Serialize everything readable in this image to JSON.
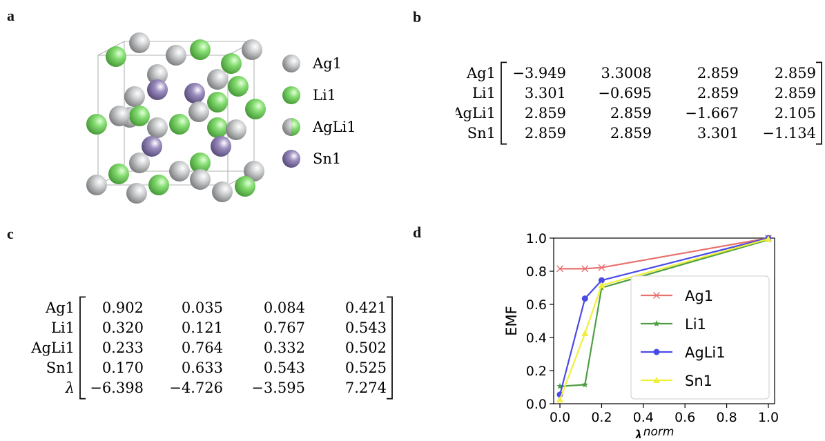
{
  "panels": {
    "a": "a",
    "b": "b",
    "c": "c",
    "d": "d"
  },
  "legend_a": [
    {
      "label": "Ag1",
      "color": "#a9abad"
    },
    {
      "label": "Li1",
      "color": "#78d067"
    },
    {
      "label": "AgLi1",
      "color": "#a9abad",
      "color2": "#78d067"
    },
    {
      "label": "Sn1",
      "color": "#8778a8"
    }
  ],
  "matrix_b": {
    "rows": [
      "Ag1",
      "Li1",
      "AgLi1",
      "Sn1"
    ],
    "values": [
      [
        "−3.949",
        "3.3008",
        "2.859",
        "2.859"
      ],
      [
        "3.301",
        "−0.695",
        "2.859",
        "2.859"
      ],
      [
        "2.859",
        "2.859",
        "−1.667",
        "2.105"
      ],
      [
        "2.859",
        "2.859",
        "3.301",
        "−1.134"
      ]
    ]
  },
  "matrix_c": {
    "rows": [
      "Ag1",
      "Li1",
      "AgLi1",
      "Sn1",
      "λ"
    ],
    "values": [
      [
        "0.902",
        "0.035",
        "0.084",
        "0.421"
      ],
      [
        "0.320",
        "0.121",
        "0.767",
        "0.543"
      ],
      [
        "0.233",
        "0.764",
        "0.332",
        "0.502"
      ],
      [
        "0.170",
        "0.633",
        "0.543",
        "0.525"
      ],
      [
        "−6.398",
        "−4.726",
        "−3.595",
        "7.274"
      ]
    ]
  },
  "chart_data": {
    "type": "line",
    "xlabel": "λ",
    "xlabel_sup": "norm",
    "ylabel": "EMF",
    "xlim": [
      -0.03,
      1.03
    ],
    "ylim": [
      0.0,
      1.0
    ],
    "xticks": [
      "0.0",
      "0.2",
      "0.4",
      "0.6",
      "0.8",
      "1.0"
    ],
    "yticks": [
      "0.0",
      "0.2",
      "0.4",
      "0.6",
      "0.8",
      "1.0"
    ],
    "legend_position": "center-right",
    "series": [
      {
        "name": "Ag1",
        "color": "#e8716f",
        "marker": "x",
        "x": [
          0.0,
          0.12,
          0.2,
          1.0
        ],
        "y": [
          0.815,
          0.815,
          0.822,
          1.0
        ]
      },
      {
        "name": "Li1",
        "color": "#4e9e44",
        "marker": "star",
        "x": [
          0.0,
          0.12,
          0.2,
          1.0
        ],
        "y": [
          0.105,
          0.115,
          0.7,
          0.99
        ]
      },
      {
        "name": "AgLi1",
        "color": "#4a4ae8",
        "marker": "circle",
        "x": [
          0.0,
          0.12,
          0.2,
          1.0
        ],
        "y": [
          0.055,
          0.635,
          0.745,
          1.0
        ]
      },
      {
        "name": "Sn1",
        "color": "#f0f03c",
        "marker": "triangle",
        "x": [
          0.0,
          0.12,
          0.2,
          1.0
        ],
        "y": [
          0.025,
          0.425,
          0.715,
          0.995
        ]
      }
    ]
  }
}
